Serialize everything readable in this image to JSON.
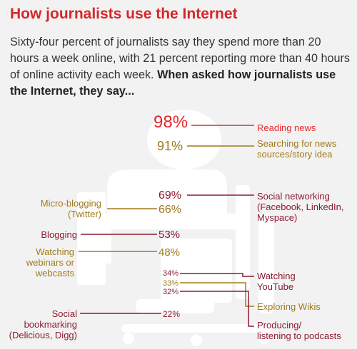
{
  "title": "How journalists use the Internet",
  "intro": {
    "text": "Sixty-four percent of journalists say they spend more than 20 hours a week online, with 21 percent reporting more than 40 hours of online activity each week.",
    "bold": "When asked how journalists use the Internet, they say..."
  },
  "colors": {
    "red": "#e8262a",
    "gold": "#a07a1c",
    "maroon": "#8c1b2e",
    "background": "#f2f2f2",
    "silhouette": "#ffffff"
  },
  "chart_data": {
    "type": "bar",
    "categories": [
      "Reading news",
      "Searching for news sources/story idea",
      "Social networking (Facebook, LinkedIn, Myspace)",
      "Micro-blogging (Twitter)",
      "Blogging",
      "Watching webinars or webcasts",
      "Watching YouTube",
      "Exploring Wikis",
      "Producing/ listening to podcasts",
      "Social bookmarking (Delicious, Digg)"
    ],
    "values": [
      98,
      91,
      69,
      66,
      53,
      48,
      34,
      33,
      32,
      22
    ],
    "value_labels": [
      "98%",
      "91%",
      "69%",
      "66%",
      "53%",
      "48%",
      "34%",
      "33%",
      "32%",
      "22%"
    ],
    "label_lines": [
      [
        "Reading news"
      ],
      [
        "Searching for news",
        "sources/story idea"
      ],
      [
        "Social networking",
        "(Facebook, LinkedIn,",
        "Myspace)"
      ],
      [
        "Micro-blogging",
        "(Twitter)"
      ],
      [
        "Blogging"
      ],
      [
        "Watching",
        "webinars or",
        "webcasts"
      ],
      [
        "Watching",
        "YouTube"
      ],
      [
        "Exploring Wikis"
      ],
      [
        "Producing/",
        "listening to podcasts"
      ],
      [
        "Social",
        "bookmarking",
        "(Delicious, Digg)"
      ]
    ],
    "label_side": [
      "right",
      "right",
      "right",
      "left",
      "left",
      "left",
      "right",
      "right",
      "right",
      "left"
    ],
    "colors": [
      "red",
      "gold",
      "maroon",
      "gold",
      "maroon",
      "gold",
      "maroon",
      "gold",
      "maroon",
      "maroon"
    ]
  }
}
